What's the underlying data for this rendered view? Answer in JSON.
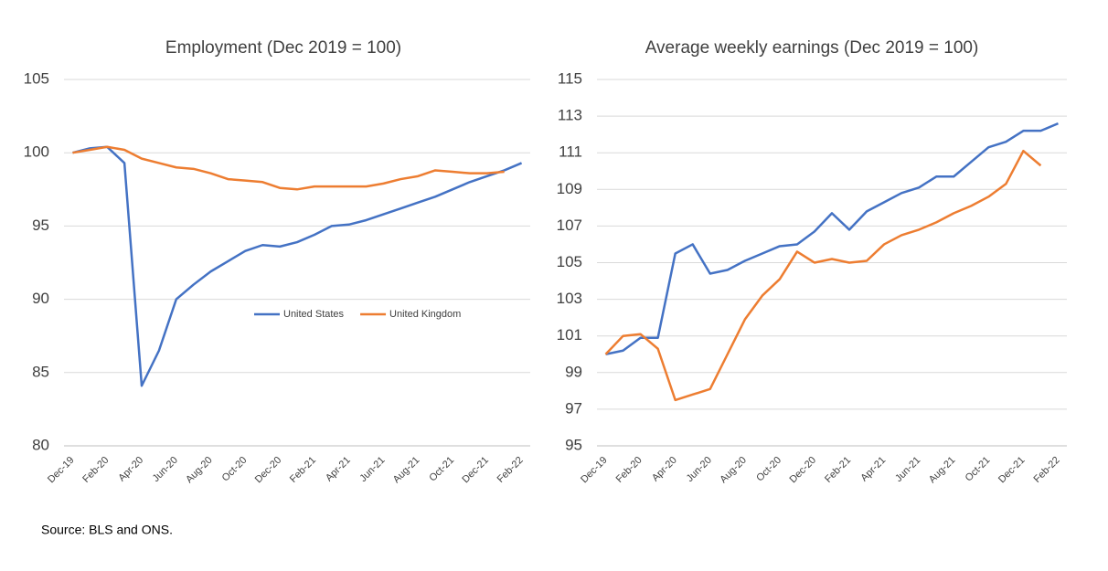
{
  "chart_data": [
    {
      "type": "line",
      "title": "Employment (Dec 2019 = 100)",
      "categories": [
        "Dec-19",
        null,
        "Feb-20",
        null,
        "Apr-20",
        null,
        "Jun-20",
        null,
        "Aug-20",
        null,
        "Oct-20",
        null,
        "Dec-20",
        null,
        "Feb-21",
        null,
        "Apr-21",
        null,
        "Jun-21",
        null,
        "Aug-21",
        null,
        "Oct-21",
        null,
        "Dec-21",
        null,
        "Feb-22"
      ],
      "series": [
        {
          "name": "United States",
          "color": "#4472c4",
          "values": [
            100,
            100.3,
            100.4,
            99.3,
            84.1,
            86.5,
            90.0,
            91.0,
            91.9,
            92.6,
            93.3,
            93.7,
            93.6,
            93.9,
            94.4,
            95.0,
            95.1,
            95.4,
            95.8,
            96.2,
            96.6,
            97.0,
            97.5,
            98.0,
            98.4,
            98.8,
            99.3
          ]
        },
        {
          "name": "United Kingdom",
          "color": "#ed7d31",
          "values": [
            100,
            100.2,
            100.4,
            100.2,
            99.6,
            99.3,
            99.0,
            98.9,
            98.6,
            98.2,
            98.1,
            98.0,
            97.6,
            97.5,
            97.7,
            97.7,
            97.7,
            97.7,
            97.9,
            98.2,
            98.4,
            98.8,
            98.7,
            98.6,
            98.6,
            98.7,
            null
          ]
        }
      ],
      "ylim": [
        80,
        105
      ],
      "yticks": [
        80,
        85,
        90,
        95,
        100,
        105
      ],
      "grid": true,
      "legend": "center"
    },
    {
      "type": "line",
      "title": "Average weekly earnings (Dec 2019 = 100)",
      "categories": [
        "Dec-19",
        null,
        "Feb-20",
        null,
        "Apr-20",
        null,
        "Jun-20",
        null,
        "Aug-20",
        null,
        "Oct-20",
        null,
        "Dec-20",
        null,
        "Feb-21",
        null,
        "Apr-21",
        null,
        "Jun-21",
        null,
        "Aug-21",
        null,
        "Oct-21",
        null,
        "Dec-21",
        null,
        "Feb-22"
      ],
      "series": [
        {
          "color": "#4472c4",
          "values": [
            100,
            100.2,
            100.9,
            100.9,
            105.5,
            106.0,
            104.4,
            104.6,
            105.1,
            105.5,
            105.9,
            106.0,
            106.7,
            107.7,
            106.8,
            107.8,
            108.3,
            108.8,
            109.1,
            109.7,
            109.7,
            110.5,
            111.3,
            111.6,
            112.2,
            112.2,
            112.6
          ]
        },
        {
          "color": "#ed7d31",
          "values": [
            100,
            101.0,
            101.1,
            100.3,
            97.5,
            97.8,
            98.1,
            100.0,
            101.9,
            103.2,
            104.1,
            105.6,
            105.0,
            105.2,
            105.0,
            105.1,
            106.0,
            106.5,
            106.8,
            107.2,
            107.7,
            108.1,
            108.6,
            109.3,
            111.1,
            110.3,
            null
          ]
        }
      ],
      "ylim": [
        95,
        115
      ],
      "yticks": [
        95,
        97,
        99,
        101,
        103,
        105,
        107,
        109,
        111,
        113,
        115
      ],
      "grid": true,
      "legend": false
    }
  ],
  "source": "Source: BLS and ONS."
}
